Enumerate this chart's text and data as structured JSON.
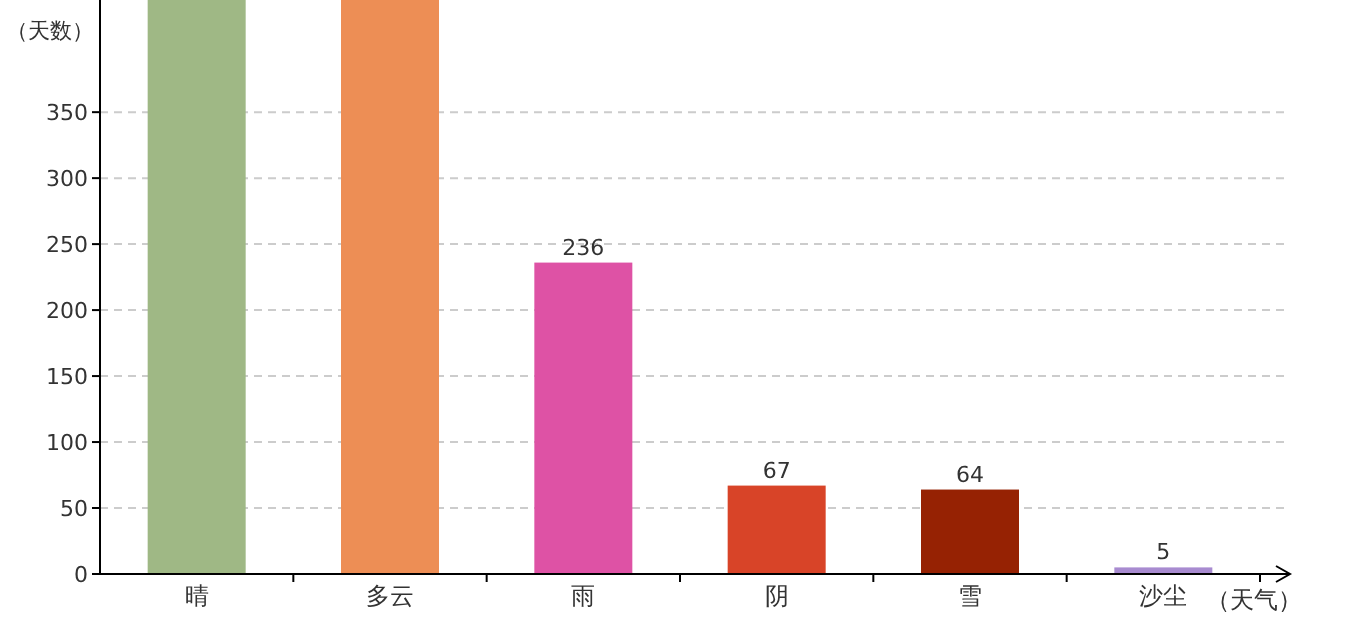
{
  "chart_data": {
    "type": "bar",
    "xlabel": "（天气）",
    "ylabel": "（天数）",
    "categories": [
      "晴",
      "多云",
      "雨",
      "阴",
      "雪",
      "沙尘"
    ],
    "values": [
      435,
      435,
      236,
      67,
      64,
      5
    ],
    "colors": [
      "#9fb885",
      "#ed8e55",
      "#de52a5",
      "#d84428",
      "#962203",
      "#a88bd0"
    ],
    "value_labels": [
      null,
      null,
      "236",
      "67",
      "64",
      "5"
    ],
    "ylim": [
      0,
      435
    ],
    "yticks": [
      0,
      50,
      100,
      150,
      200,
      250,
      300,
      350
    ],
    "grid": "y"
  }
}
